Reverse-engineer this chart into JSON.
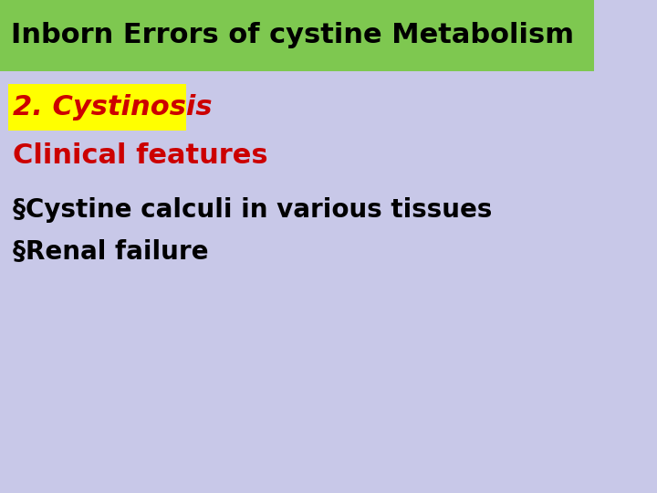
{
  "bg_color": "#c8c8e8",
  "title_bg_color": "#7ec850",
  "title_text": "Inborn Errors of cystine Metabolism",
  "title_text_color": "#000000",
  "title_fontsize": 22,
  "subtitle_bg_color": "#ffff00",
  "subtitle_text": "2. Cystinosis",
  "subtitle_text_color": "#cc0000",
  "subtitle_fontsize": 22,
  "section_text": "Clinical features",
  "section_text_color": "#cc0000",
  "section_fontsize": 22,
  "bullet_color": "#000000",
  "bullet_fontsize": 20,
  "bullets": [
    "§Cystine calculi in various tissues",
    "§Renal failure"
  ]
}
